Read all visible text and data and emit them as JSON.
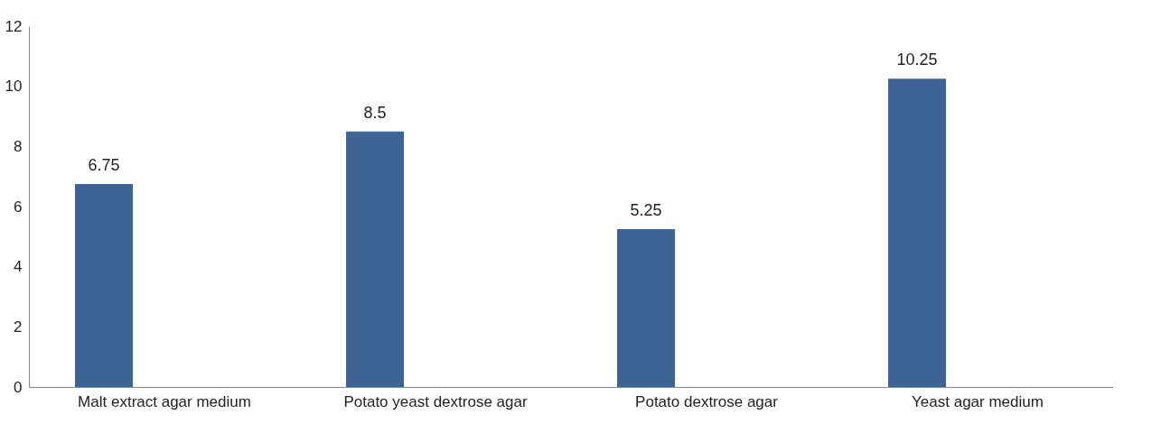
{
  "chart_data": {
    "type": "bar",
    "categories": [
      "Malt extract agar medium",
      "Potato yeast dextrose agar",
      "Potato dextrose agar",
      "Yeast agar medium"
    ],
    "values": [
      6.75,
      8.5,
      5.25,
      10.25
    ],
    "color": "#3e6496",
    "ylim": [
      0,
      12
    ],
    "yticks": [
      0,
      2,
      4,
      6,
      8,
      10,
      12
    ],
    "grid": false,
    "data_labels": true
  }
}
